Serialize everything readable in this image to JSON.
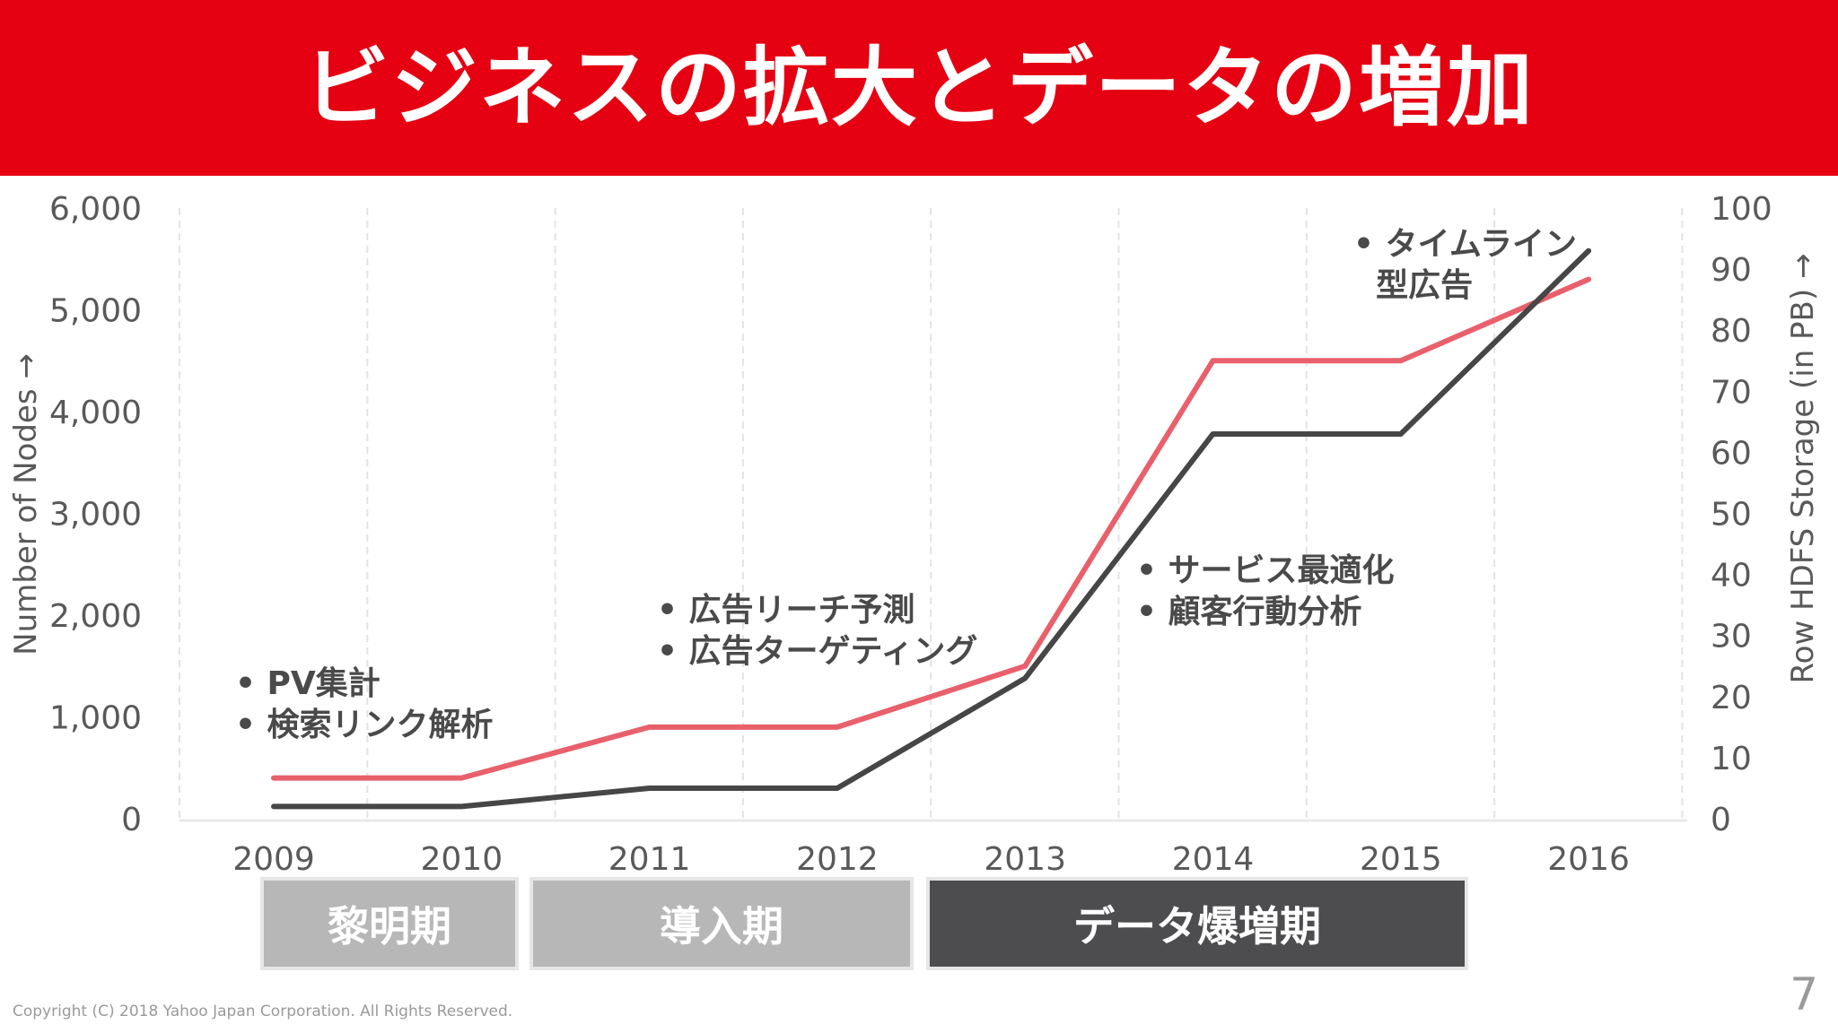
{
  "title": "ビジネスの拡大とデータの増加",
  "chart_data": {
    "type": "line",
    "categories": [
      "2009",
      "2010",
      "2011",
      "2012",
      "2013",
      "2014",
      "2015",
      "2016"
    ],
    "y_left": {
      "label": "Number of Nodes →",
      "ticks": [
        "0",
        "1,000",
        "2,000",
        "3,000",
        "4,000",
        "5,000",
        "6,000"
      ],
      "range": [
        0,
        6000
      ]
    },
    "y_right": {
      "label": "Row HDFS Storage (in PB) →",
      "ticks": [
        "0",
        "10",
        "20",
        "30",
        "40",
        "50",
        "60",
        "70",
        "80",
        "90",
        "100"
      ],
      "range": [
        0,
        100
      ]
    },
    "series": [
      {
        "name": "Number of Nodes",
        "color": "#e8606b",
        "axis": "left",
        "values": [
          400,
          400,
          900,
          900,
          1500,
          4500,
          4500,
          5300
        ]
      },
      {
        "name": "Row HDFS Storage (in PB)",
        "color": "#464646",
        "axis": "right",
        "values": [
          2,
          2,
          5,
          5,
          23,
          63,
          63,
          93
        ]
      }
    ],
    "grid": "vertical-dashed",
    "annotations": [
      {
        "id": "a2009",
        "lines": [
          "• PV集計",
          "• 検索リンク解析"
        ]
      },
      {
        "id": "a2011",
        "lines": [
          "• 広告リーチ予測",
          "• 広告ターゲティング"
        ]
      },
      {
        "id": "a2013",
        "lines": [
          "• サービス最適化",
          "• 顧客行動分析"
        ]
      },
      {
        "id": "a2015",
        "lines": [
          "• タイムライン",
          "  型広告"
        ]
      }
    ]
  },
  "phases": [
    {
      "label": "黎明期",
      "color": "#b7b7b7"
    },
    {
      "label": "導入期",
      "color": "#b7b7b7"
    },
    {
      "label": "データ爆増期",
      "color": "#4d4d4f"
    }
  ],
  "footer": {
    "copyright": "Copyright (C) 2018 Yahoo Japan Corporation. All Rights Reserved.",
    "page_number": "7"
  }
}
